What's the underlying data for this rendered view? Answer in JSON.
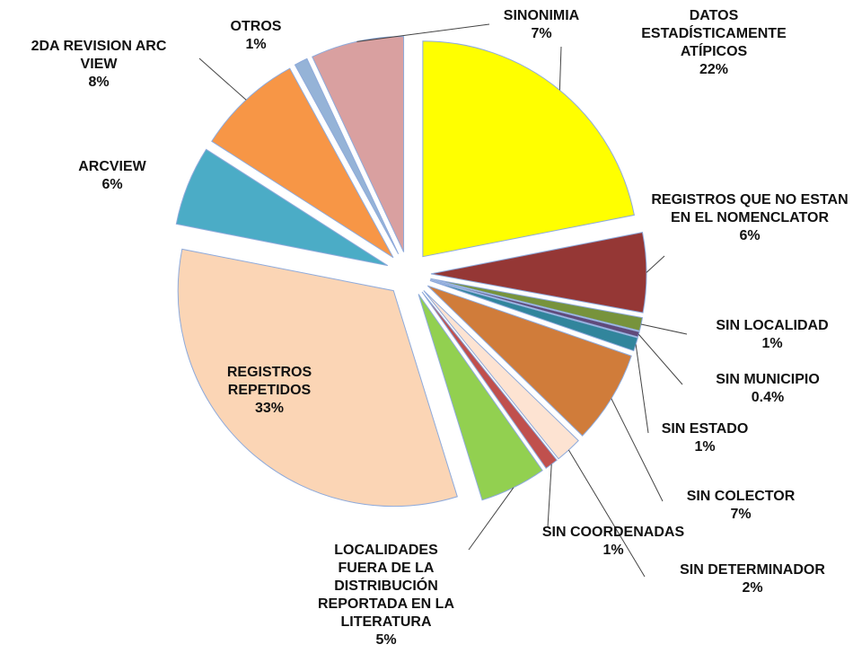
{
  "chart_data": {
    "type": "pie",
    "categories": [
      "DATOS ESTADÍSTICAMENTE ATÍPICOS",
      "REGISTROS QUE NO ESTAN EN EL NOMENCLATOR",
      "SIN LOCALIDAD",
      "SIN MUNICIPIO",
      "SIN ESTADO",
      "SIN COLECTOR",
      "SIN DETERMINADOR",
      "SIN COORDENADAS",
      "LOCALIDADES FUERA DE LA DISTRIBUCIÓN REPORTADA EN LA LITERATURA",
      "REGISTROS REPETIDOS",
      "ARCVIEW",
      "2DA REVISION ARC VIEW",
      "OTROS",
      "SINONIMIA"
    ],
    "values": [
      22,
      6,
      1,
      0.4,
      1,
      7,
      2,
      1,
      5,
      33,
      6,
      8,
      1,
      7
    ],
    "value_labels": [
      "22%",
      "6%",
      "1%",
      "0.4%",
      "1%",
      "7%",
      "2%",
      "1%",
      "5%",
      "33%",
      "6%",
      "8%",
      "1%",
      "7%"
    ],
    "colors": [
      "#ffff00",
      "#953735",
      "#77933c",
      "#604a7b",
      "#31859c",
      "#d07c3a",
      "#fde3d2",
      "#c0504d",
      "#92d050",
      "#fbd5b5",
      "#4bacc6",
      "#f79646",
      "#95b3d7",
      "#d9a0a0"
    ]
  }
}
